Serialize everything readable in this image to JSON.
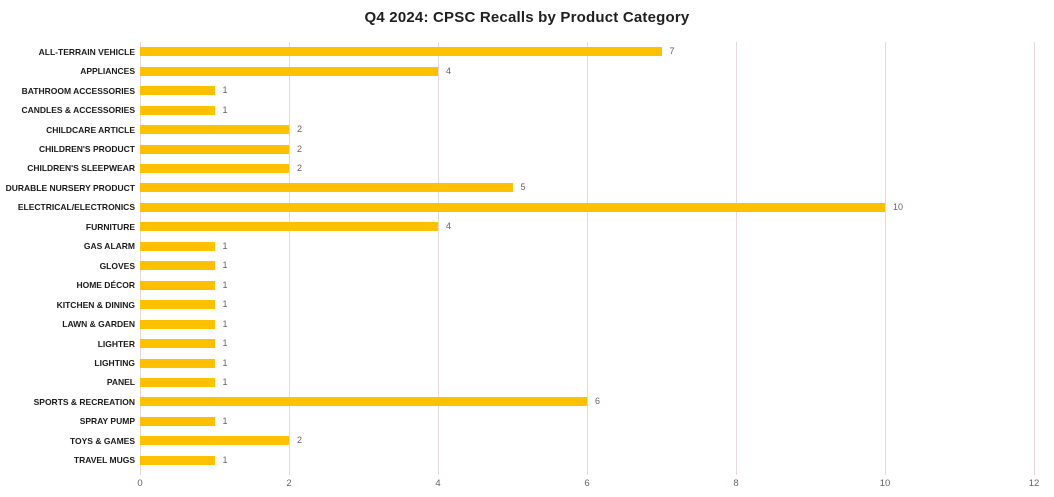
{
  "chart_data": {
    "type": "bar",
    "orientation": "horizontal",
    "title": "Q4 2024: CPSC Recalls by Product Category",
    "categories": [
      "ALL-TERRAIN VEHICLE",
      "APPLIANCES",
      "BATHROOM ACCESSORIES",
      "CANDLES & ACCESSORIES",
      "CHILDCARE ARTICLE",
      "CHILDREN'S PRODUCT",
      "CHILDREN'S SLEEPWEAR",
      "DURABLE NURSERY PRODUCT",
      "ELECTRICAL/ELECTRONICS",
      "FURNITURE",
      "GAS ALARM",
      "GLOVES",
      "HOME DÉCOR",
      "KITCHEN & DINING",
      "LAWN & GARDEN",
      "LIGHTER",
      "LIGHTING",
      "PANEL",
      "SPORTS & RECREATION",
      "SPRAY PUMP",
      "TOYS & GAMES",
      "TRAVEL MUGS"
    ],
    "values": [
      7,
      4,
      1,
      1,
      2,
      2,
      2,
      5,
      10,
      4,
      1,
      1,
      1,
      1,
      1,
      1,
      1,
      1,
      6,
      1,
      2,
      1
    ],
    "xlabel": "",
    "ylabel": "",
    "xlim": [
      0,
      12
    ],
    "x_ticks": [
      0,
      2,
      4,
      6,
      8,
      10,
      12
    ],
    "grid": "vertical",
    "legend": "none",
    "data_labels": true,
    "colors": {
      "bar": "#FFC000",
      "gridline": "#E8D8DC",
      "value_label": "#6B5F60",
      "tick_label": "#6B5F60",
      "category_label": "#1A1A1A",
      "title": "#1F1F1F",
      "background": "#FFFFFF"
    }
  }
}
